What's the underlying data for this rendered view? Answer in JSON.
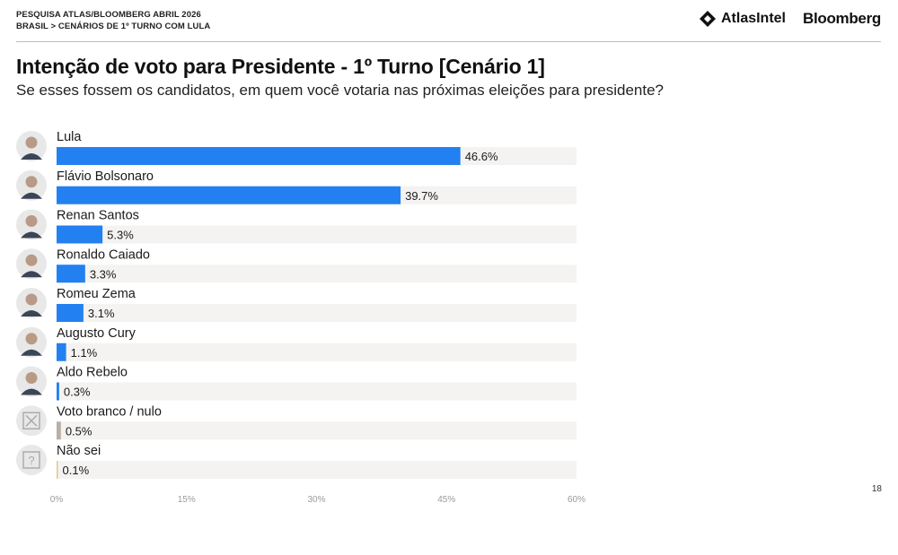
{
  "header": {
    "survey_title": "PESQUISA ATLAS/BLOOMBERG ABRIL 2026",
    "survey_subtitle": "BRASIL > CENÁRIOS DE 1º TURNO COM LULA",
    "brand_atlas": "AtlasIntel",
    "brand_bloomberg": "Bloomberg"
  },
  "title": "Intenção de voto para Presidente - 1º Turno [Cenário 1]",
  "subtitle": "Se esses fossem os candidatos, em quem você votaria nas próximas eleições para presidente?",
  "page_number": "18",
  "colors": {
    "bar_candidate": "#2380f0",
    "bar_blank": "#b8b0a8",
    "bar_unknown": "#e2c98a",
    "track": "#f4f3f1",
    "avatar_bg": "#e8e8e8"
  },
  "chart_data": {
    "type": "bar",
    "orientation": "horizontal",
    "categories": [
      "Lula",
      "Flávio Bolsonaro",
      "Renan Santos",
      "Ronaldo Caiado",
      "Romeu Zema",
      "Augusto Cury",
      "Aldo Rebelo",
      "Voto branco / nulo",
      "Não sei"
    ],
    "values": [
      46.6,
      39.7,
      5.3,
      3.3,
      3.1,
      1.1,
      0.3,
      0.5,
      0.1
    ],
    "value_labels": [
      "46.6%",
      "39.7%",
      "5.3%",
      "3.3%",
      "3.1%",
      "1.1%",
      "0.3%",
      "0.5%",
      "0.1%"
    ],
    "bar_kinds": [
      "candidate",
      "candidate",
      "candidate",
      "candidate",
      "candidate",
      "candidate",
      "candidate",
      "blank",
      "unknown"
    ],
    "avatar_icons": [
      "person-photo-icon",
      "person-photo-icon",
      "person-photo-icon",
      "person-photo-icon",
      "person-photo-icon",
      "person-photo-icon",
      "person-photo-icon",
      "x-box-icon",
      "question-box-icon"
    ],
    "xlim": [
      0,
      60
    ],
    "xticks": [
      0,
      15,
      30,
      45,
      60
    ],
    "xtick_labels": [
      "0%",
      "15%",
      "30%",
      "45%",
      "60%"
    ],
    "grid": false
  }
}
